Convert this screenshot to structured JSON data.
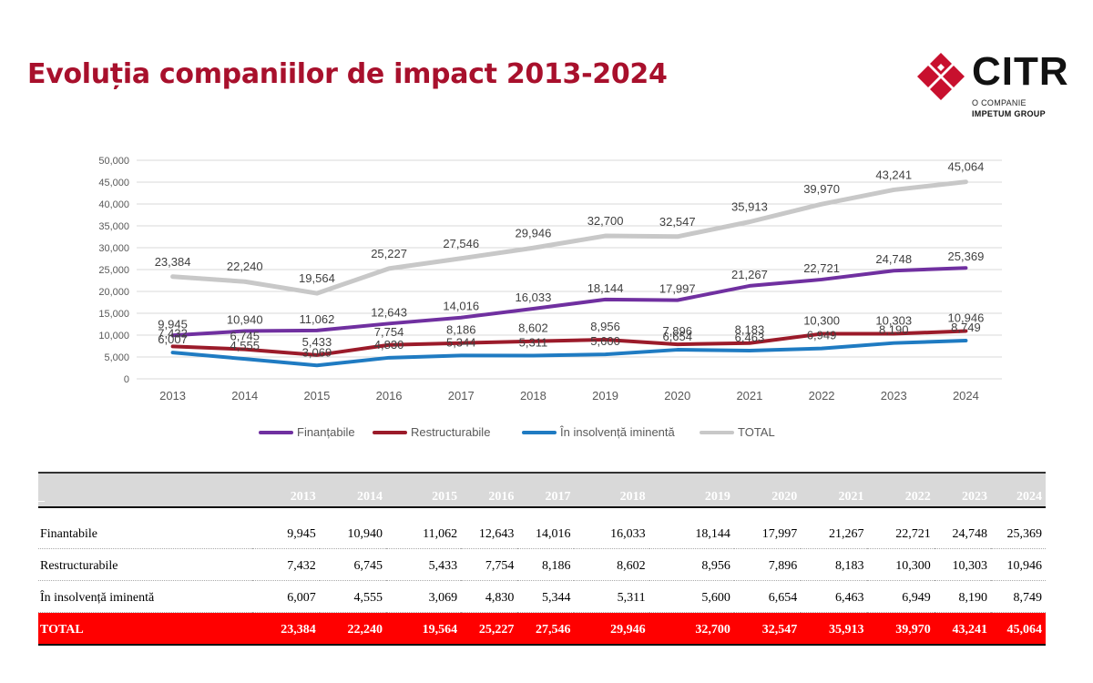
{
  "header": {
    "title": "Evoluția companiilor de impact 2013-2024"
  },
  "logo": {
    "word": "CITR",
    "sub1": "O COMPANIE",
    "sub2": "IMPETUM GROUP",
    "color": "#c8102e"
  },
  "chart_data": {
    "type": "line",
    "title": "",
    "xlabel": "",
    "ylabel": "",
    "ylim": [
      0,
      50000
    ],
    "ytick_step": 5000,
    "ytick_labels": [
      "0",
      "5,000",
      "10,000",
      "15,000",
      "20,000",
      "25,000",
      "30,000",
      "35,000",
      "40,000",
      "45,000",
      "50,000"
    ],
    "grid": true,
    "legend_position": "bottom",
    "categories": [
      "2013",
      "2014",
      "2015",
      "2016",
      "2017",
      "2018",
      "2019",
      "2020",
      "2021",
      "2022",
      "2023",
      "2024"
    ],
    "series": [
      {
        "name": "Finanțabile",
        "color": "#7030a0",
        "values": [
          9945,
          10940,
          11062,
          12643,
          14016,
          16033,
          18144,
          17997,
          21267,
          22721,
          24748,
          25369
        ],
        "labels": [
          "9,945",
          "10,940",
          "11,062",
          "12,643",
          "14,016",
          "16,033",
          "18,144",
          "17,997",
          "21,267",
          "22,721",
          "24,748",
          "25,369"
        ]
      },
      {
        "name": "Restructurabile",
        "color": "#9b1b2a",
        "values": [
          7432,
          6745,
          5433,
          7754,
          8186,
          8602,
          8956,
          7896,
          8183,
          10300,
          10303,
          10946
        ],
        "labels": [
          "7,432",
          "6,745",
          "5,433",
          "7,754",
          "8,186",
          "8,602",
          "8,956",
          "7,896",
          "8,183",
          "10,300",
          "10,303",
          "10,946"
        ]
      },
      {
        "name": "În insolvență iminentă",
        "color": "#1f7bc2",
        "values": [
          6007,
          4555,
          3069,
          4830,
          5344,
          5311,
          5600,
          6654,
          6463,
          6949,
          8190,
          8749
        ],
        "labels": [
          "6,007",
          "4,555",
          "3,069",
          "4,830",
          "5,344",
          "5,311",
          "5,600",
          "6,654",
          "6,463",
          "6,949",
          "8,190",
          "8,749"
        ]
      },
      {
        "name": "TOTAL",
        "color": "#c8c8c8",
        "values": [
          23384,
          22240,
          19564,
          25227,
          27546,
          29946,
          32700,
          32547,
          35913,
          39970,
          43241,
          45064
        ],
        "labels": [
          "23,384",
          "22,240",
          "19,564",
          "25,227",
          "27,546",
          "29,946",
          "32,700",
          "32,547",
          "35,913",
          "39,970",
          "43,241",
          "45,064"
        ]
      }
    ]
  },
  "table": {
    "corner": "_",
    "years": [
      "2013",
      "2014",
      "2015",
      "2016",
      "2017",
      "2018",
      "2019",
      "2020",
      "2021",
      "2022",
      "2023",
      "2024"
    ],
    "rows": [
      {
        "label": "Finantabile",
        "values": [
          "9,945",
          "10,940",
          "11,062",
          "12,643",
          "14,016",
          "16,033",
          "18,144",
          "17,997",
          "21,267",
          "22,721",
          "24,748",
          "25,369"
        ]
      },
      {
        "label": "Restructurabile",
        "values": [
          "7,432",
          "6,745",
          "5,433",
          "7,754",
          "8,186",
          "8,602",
          "8,956",
          "7,896",
          "8,183",
          "10,300",
          "10,303",
          "10,946"
        ]
      },
      {
        "label": "În insolvență iminentă",
        "values": [
          "6,007",
          "4,555",
          "3,069",
          "4,830",
          "5,344",
          "5,311",
          "5,600",
          "6,654",
          "6,463",
          "6,949",
          "8,190",
          "8,749"
        ]
      }
    ],
    "total": {
      "label": "TOTAL",
      "values": [
        "23,384",
        "22,240",
        "19,564",
        "25,227",
        "27,546",
        "29,946",
        "32,700",
        "32,547",
        "35,913",
        "39,970",
        "43,241",
        "45,064"
      ]
    }
  }
}
